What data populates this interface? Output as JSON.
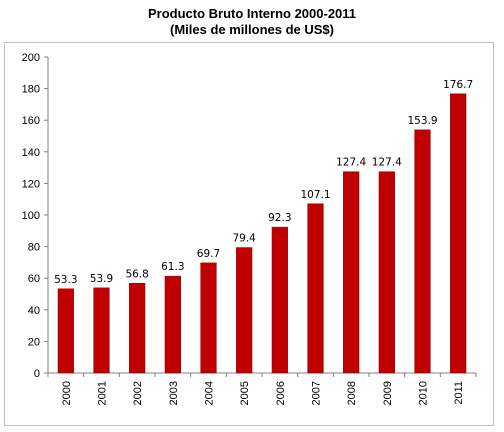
{
  "chart_data": {
    "type": "bar",
    "title": "Producto Bruto Interno 2000-2011",
    "subtitle": "(Miles de millones de US$)",
    "xlabel": "",
    "ylabel": "",
    "categories": [
      "2000",
      "2001",
      "2002",
      "2003",
      "2004",
      "2005",
      "2006",
      "2007",
      "2008",
      "2009",
      "2010",
      "2011"
    ],
    "values": [
      53.3,
      53.9,
      56.8,
      61.3,
      69.7,
      79.4,
      92.3,
      107.1,
      127.4,
      127.4,
      153.9,
      176.7
    ],
    "data_labels": [
      "53.3",
      "53.9",
      "56.8",
      "61.3",
      "69.7",
      "79.4",
      "92.3",
      "107.1",
      "127.4",
      "127.4",
      "153.9",
      "176.7"
    ],
    "ylim": [
      0,
      200
    ],
    "yticks": [
      "0",
      "20",
      "40",
      "60",
      "80",
      "100",
      "120",
      "140",
      "160",
      "180",
      "200"
    ],
    "grid": false,
    "legend": "none",
    "colors": {
      "bar": "#c00000",
      "bar_edge": "#8b0000",
      "axis": "#808080"
    }
  }
}
